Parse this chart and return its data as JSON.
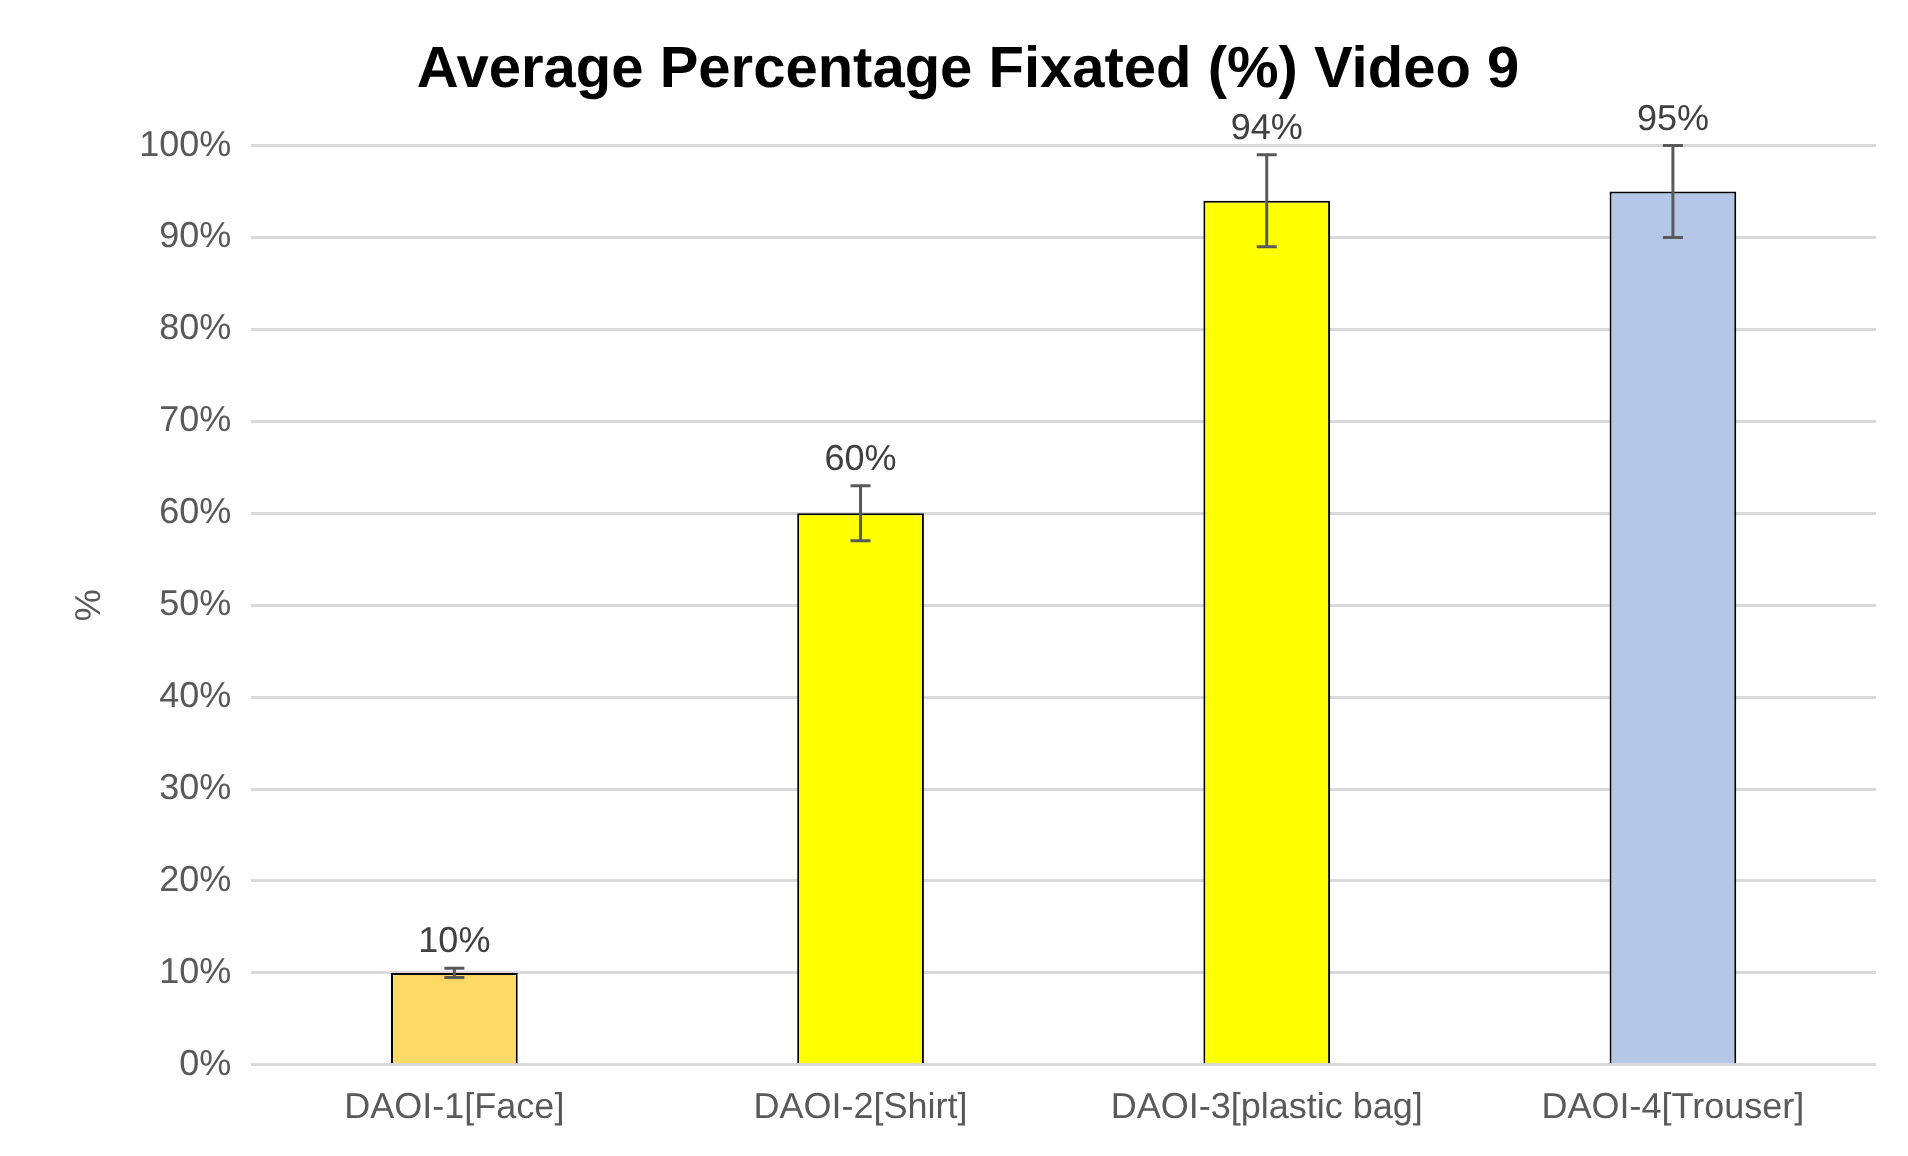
{
  "chart_data": {
    "type": "bar",
    "title": "Average Percentage Fixated (%) Video 9",
    "ylabel": "%",
    "categories": [
      "DAOI-1[Face]",
      "DAOI-2[Shirt]",
      "DAOI-3[plastic bag]",
      "DAOI-4[Trouser]"
    ],
    "values": [
      10,
      60,
      94,
      95
    ],
    "colors": [
      "#ffd966",
      "#ffff00",
      "#ffff00",
      "#b4c7e7"
    ],
    "errors": [
      0.5,
      3,
      5,
      5
    ],
    "value_labels": [
      "10%",
      "60%",
      "94%",
      "95%"
    ],
    "ylim": [
      0,
      100
    ],
    "yticks": [
      {
        "value": 0,
        "label": "0%"
      },
      {
        "value": 10,
        "label": "10%"
      },
      {
        "value": 20,
        "label": "20%"
      },
      {
        "value": 30,
        "label": "30%"
      },
      {
        "value": 40,
        "label": "40%"
      },
      {
        "value": 50,
        "label": "50%"
      },
      {
        "value": 60,
        "label": "60%"
      },
      {
        "value": 70,
        "label": "70%"
      },
      {
        "value": 80,
        "label": "80%"
      },
      {
        "value": 90,
        "label": "90%"
      },
      {
        "value": 100,
        "label": "100%"
      }
    ],
    "grid": "y",
    "legend": false
  }
}
